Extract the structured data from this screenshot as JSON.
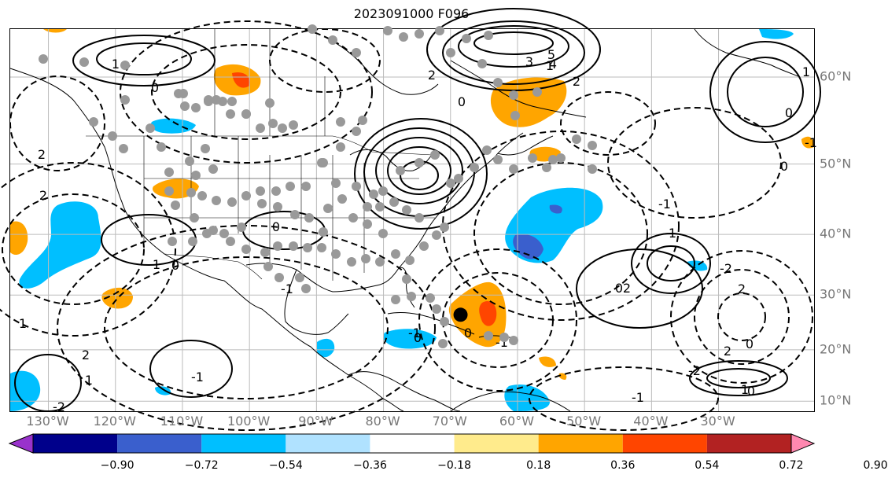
{
  "title": "2023091000 F096",
  "lat_labels": [
    {
      "text": "60°N",
      "lat": 60
    },
    {
      "text": "50°N",
      "lat": 50
    },
    {
      "text": "40°N",
      "lat": 40
    },
    {
      "text": "30°N",
      "lat": 30
    },
    {
      "text": "20°N",
      "lat": 20
    },
    {
      "text": "10°N",
      "lat": 10
    }
  ],
  "lon_labels": [
    {
      "text": "130°W",
      "lon": -130
    },
    {
      "text": "120°W",
      "lon": -120
    },
    {
      "text": "110°W",
      "lon": -110
    },
    {
      "text": "100°W",
      "lon": -100
    },
    {
      "text": "90°W",
      "lon": -90
    },
    {
      "text": "80°W",
      "lon": -80
    },
    {
      "text": "70°W",
      "lon": -70
    },
    {
      "text": "60°W",
      "lon": -60
    },
    {
      "text": "50°W",
      "lon": -50
    },
    {
      "text": "40°W",
      "lon": -40
    },
    {
      "text": "30°W",
      "lon": -30
    }
  ],
  "colorbar": {
    "colors": [
      "#9932cc",
      "#00008b",
      "#3a5fcd",
      "#00bfff",
      "#b0e2ff",
      "#ffffff",
      "#ffeb8c",
      "#ffa500",
      "#ff4500",
      "#b22222",
      "#ff88b0"
    ],
    "ticks": [
      "−0.90",
      "−0.72",
      "−0.54",
      "−0.36",
      "−0.18",
      "0.18",
      "0.36",
      "0.54",
      "0.72",
      "0.90"
    ]
  },
  "contour_labels": [
    "2",
    "1",
    "0",
    "1",
    "0",
    "2",
    "0",
    "-1",
    "1",
    "3",
    "4",
    "5",
    "2",
    "1",
    "2",
    "0",
    "1",
    "0",
    "2",
    "-2",
    "2",
    "0",
    "-1",
    "0",
    "1",
    "2",
    "0",
    "-1",
    "-2",
    "1",
    "0",
    "-1",
    "-1",
    "0",
    "-1",
    "0",
    "2",
    "-1",
    "1",
    "-2"
  ],
  "marker": {
    "name": "storm center",
    "lon": -68.5,
    "lat": 26.5
  }
}
